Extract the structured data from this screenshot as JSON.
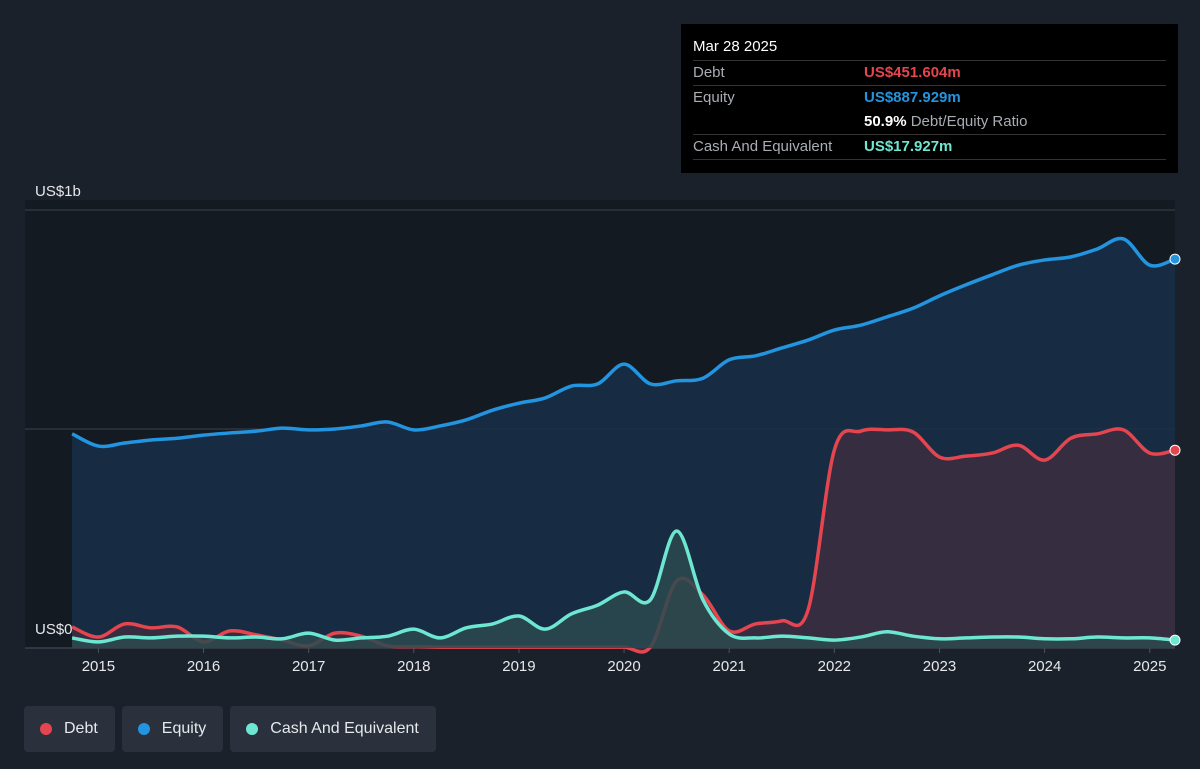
{
  "chart_data": {
    "type": "area",
    "x": [
      2014.75,
      2015.0,
      2015.25,
      2015.5,
      2015.75,
      2016.0,
      2016.25,
      2016.5,
      2016.75,
      2017.0,
      2017.25,
      2017.5,
      2017.75,
      2018.0,
      2018.25,
      2018.5,
      2018.75,
      2019.0,
      2019.25,
      2019.5,
      2019.75,
      2020.0,
      2020.25,
      2020.5,
      2020.75,
      2021.0,
      2021.25,
      2021.5,
      2021.75,
      2022.0,
      2022.25,
      2022.5,
      2022.75,
      2023.0,
      2023.25,
      2023.5,
      2023.75,
      2024.0,
      2024.25,
      2024.5,
      2024.75,
      2025.0,
      2025.24
    ],
    "series": [
      {
        "name": "Debt",
        "color": "#e5454f",
        "fill": "#3c2f3f",
        "values": [
          48,
          25,
          55,
          46,
          48,
          14,
          39,
          30,
          18,
          5,
          34,
          27,
          5,
          3,
          2,
          2,
          2,
          2,
          2,
          2,
          2,
          2,
          2,
          153,
          121,
          39,
          55,
          62,
          87,
          452,
          495,
          498,
          493,
          436,
          438,
          445,
          463,
          429,
          479,
          489,
          498,
          445,
          451.604
        ]
      },
      {
        "name": "Equity",
        "color": "#2394df",
        "fill": "#183049",
        "values": [
          489,
          461,
          468,
          475,
          479,
          486,
          491,
          495,
          502,
          498,
          500,
          507,
          516,
          498,
          507,
          521,
          543,
          559,
          571,
          598,
          603,
          648,
          603,
          610,
          616,
          658,
          667,
          685,
          703,
          726,
          737,
          756,
          776,
          804,
          829,
          852,
          874,
          886,
          893,
          911,
          934,
          874,
          887.929
        ]
      },
      {
        "name": "Cash And Equivalent",
        "color": "#6ee7d2",
        "fill": "#2c4a4f",
        "values": [
          23,
          14,
          25,
          23,
          27,
          27,
          23,
          25,
          21,
          34,
          18,
          23,
          27,
          43,
          23,
          46,
          55,
          73,
          43,
          78,
          98,
          128,
          110,
          267,
          110,
          32,
          23,
          27,
          23,
          18,
          25,
          37,
          27,
          21,
          23,
          25,
          25,
          21,
          21,
          25,
          23,
          23,
          17.927
        ]
      }
    ],
    "xlim": [
      2014.73,
      2025.24
    ],
    "xticks": [
      2015,
      2016,
      2017,
      2018,
      2019,
      2020,
      2021,
      2022,
      2023,
      2024,
      2025
    ],
    "ylim": [
      0,
      1000
    ],
    "yticks": [
      {
        "value": 0,
        "label": "US$0"
      },
      {
        "value": 1000,
        "label": "US$1b"
      }
    ],
    "ygrid": [
      0,
      500,
      1000
    ],
    "tooltip": {
      "date": "Mar 28 2025",
      "rows": [
        {
          "label": "Debt",
          "value": "US$451.604m"
        },
        {
          "label": "Equity",
          "value": "US$887.929m"
        },
        {
          "value": "50.9%",
          "label": "Debt/Equity Ratio"
        },
        {
          "label": "Cash And Equivalent",
          "value": "US$17.927m"
        }
      ]
    }
  }
}
